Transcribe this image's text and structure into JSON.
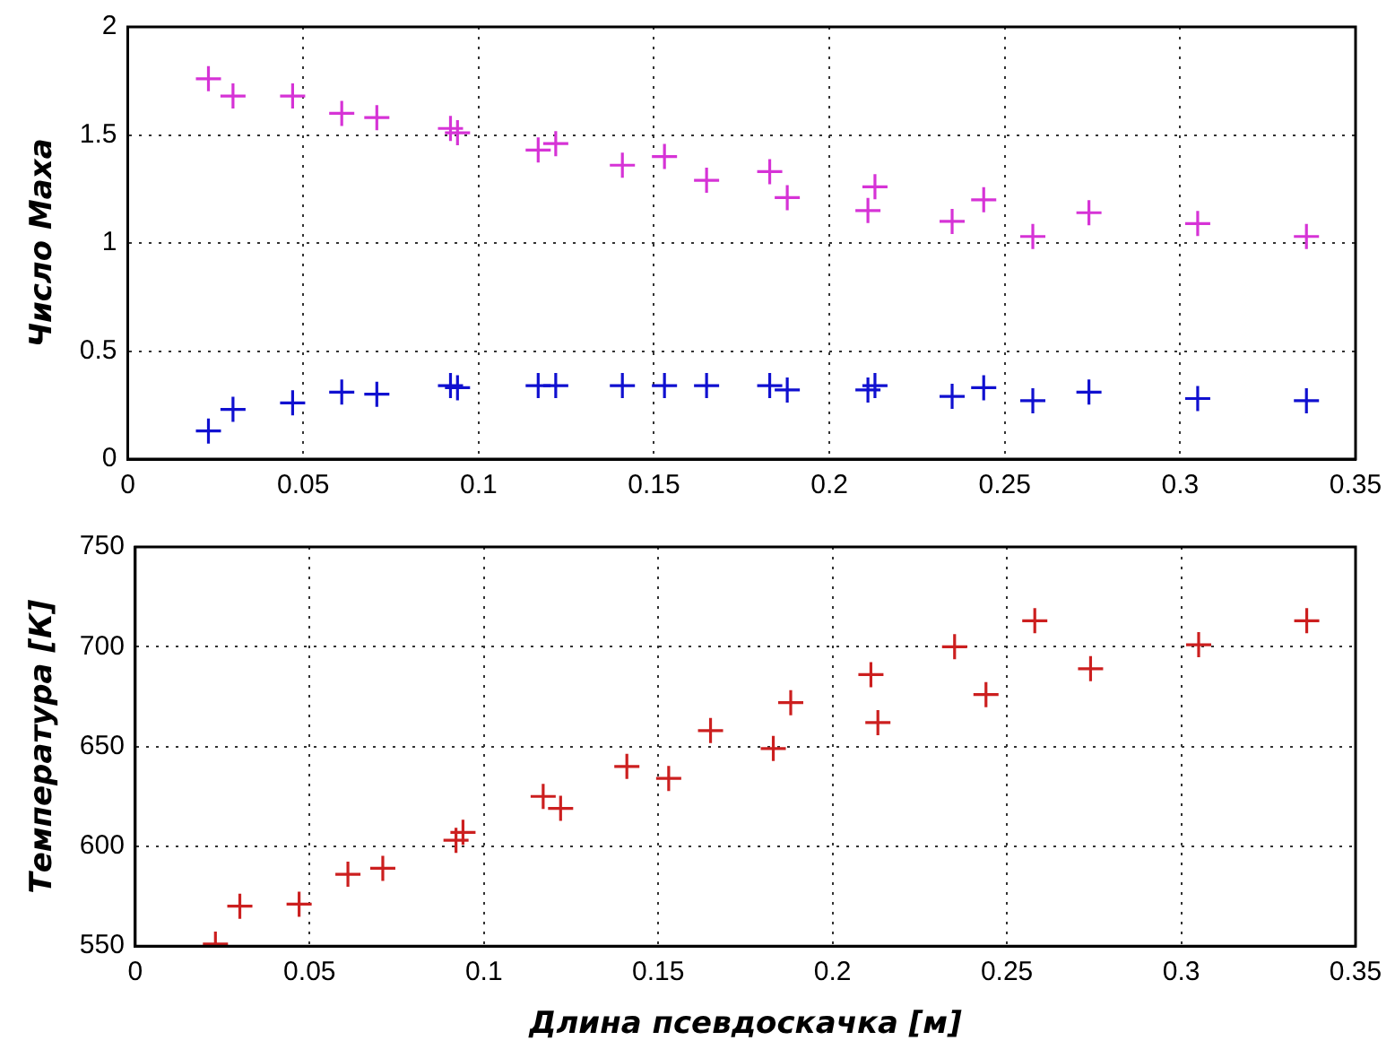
{
  "chart_data": [
    {
      "type": "scatter",
      "ylabel": "Число Маха",
      "xlim": [
        0,
        0.35
      ],
      "xticks": [
        0,
        0.05,
        0.1,
        0.15,
        0.2,
        0.25,
        0.3,
        0.35
      ],
      "ylim": [
        0,
        2
      ],
      "yticks": [
        0,
        0.5,
        1,
        1.5,
        2
      ],
      "grid": true,
      "marker": "cross",
      "legend": false,
      "series": [
        {
          "color": "#d633d6",
          "x": [
            0.023,
            0.03,
            0.047,
            0.061,
            0.071,
            0.092,
            0.094,
            0.117,
            0.122,
            0.141,
            0.153,
            0.165,
            0.183,
            0.188,
            0.211,
            0.213,
            0.235,
            0.244,
            0.258,
            0.274,
            0.305,
            0.336
          ],
          "values": [
            1.76,
            1.68,
            1.68,
            1.6,
            1.58,
            1.53,
            1.51,
            1.43,
            1.46,
            1.36,
            1.4,
            1.29,
            1.33,
            1.21,
            1.15,
            1.26,
            1.1,
            1.2,
            1.03,
            1.14,
            1.09,
            1.03
          ]
        },
        {
          "color": "#1010d0",
          "x": [
            0.023,
            0.03,
            0.047,
            0.061,
            0.071,
            0.092,
            0.094,
            0.117,
            0.122,
            0.141,
            0.153,
            0.165,
            0.183,
            0.188,
            0.211,
            0.213,
            0.235,
            0.244,
            0.258,
            0.274,
            0.305,
            0.336
          ],
          "values": [
            0.13,
            0.23,
            0.26,
            0.31,
            0.3,
            0.34,
            0.33,
            0.34,
            0.34,
            0.34,
            0.34,
            0.34,
            0.34,
            0.32,
            0.32,
            0.34,
            0.29,
            0.33,
            0.27,
            0.31,
            0.28,
            0.27
          ]
        }
      ]
    },
    {
      "type": "scatter",
      "xlabel": "Длина псевдоскачка [м]",
      "ylabel": "Температура [К]",
      "xlim": [
        0,
        0.35
      ],
      "xticks": [
        0,
        0.05,
        0.1,
        0.15,
        0.2,
        0.25,
        0.3,
        0.35
      ],
      "ylim": [
        550,
        750
      ],
      "yticks": [
        550,
        600,
        650,
        700,
        750
      ],
      "grid": true,
      "marker": "cross",
      "legend": false,
      "series": [
        {
          "color": "#cc1f1f",
          "x": [
            0.023,
            0.03,
            0.047,
            0.061,
            0.071,
            0.092,
            0.094,
            0.117,
            0.122,
            0.141,
            0.153,
            0.165,
            0.183,
            0.188,
            0.211,
            0.213,
            0.235,
            0.244,
            0.258,
            0.274,
            0.305,
            0.336
          ],
          "values": [
            551,
            570,
            571,
            586,
            589,
            603,
            607,
            625,
            619,
            640,
            634,
            658,
            649,
            672,
            686,
            662,
            700,
            676,
            713,
            689,
            701,
            713
          ]
        }
      ]
    }
  ]
}
